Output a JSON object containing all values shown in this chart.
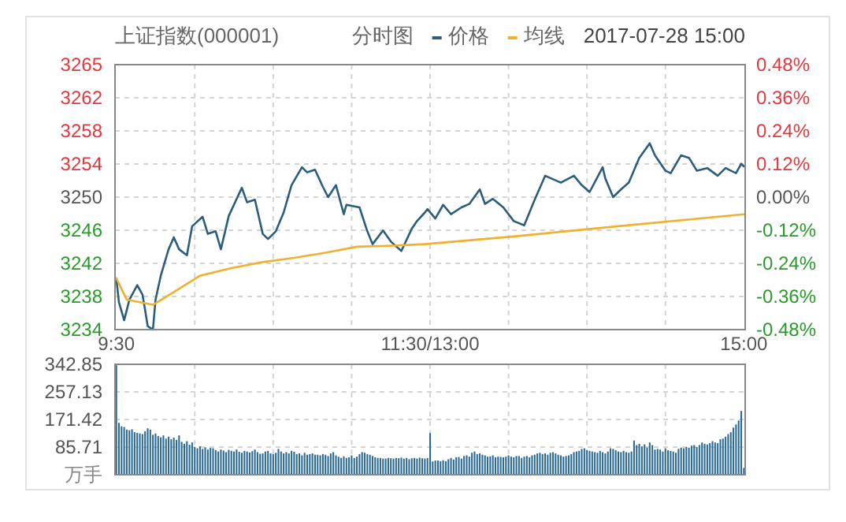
{
  "chart_data": [
    {
      "type": "line",
      "title": "上证指数(000001)",
      "subtitle": "分时图",
      "annotations": [
        "2017-07-28 15:00"
      ],
      "legend": "top right",
      "grid": true,
      "marker": "none",
      "line_style": "solid",
      "categories": [
        "9:30",
        null,
        null,
        null,
        null,
        null,
        null,
        null,
        null,
        null,
        null,
        null,
        null,
        null,
        null,
        null,
        null,
        null,
        null,
        null,
        null,
        null,
        null,
        null,
        null,
        null,
        null,
        null,
        null,
        null,
        null,
        null,
        null,
        null,
        null,
        null,
        null,
        null,
        null,
        null,
        null,
        null,
        null,
        null,
        null,
        null,
        null,
        null,
        null,
        null,
        null,
        null,
        null,
        null,
        null,
        null,
        null,
        null,
        null,
        null,
        null,
        null,
        null,
        null,
        null,
        null,
        null,
        null,
        null,
        null,
        null,
        null,
        null,
        null,
        null,
        null,
        null,
        null,
        null,
        null,
        null,
        null,
        null,
        null,
        null,
        null,
        null,
        null,
        null,
        null,
        null,
        null,
        null,
        null,
        null,
        null,
        null,
        null,
        null,
        null,
        null,
        null,
        null,
        null,
        null,
        null,
        null,
        null,
        null,
        null,
        null,
        null,
        null,
        null,
        null,
        null,
        null,
        null,
        null,
        null,
        "11:30/13:00",
        null,
        null,
        null,
        null,
        null,
        null,
        null,
        null,
        null,
        null,
        null,
        null,
        null,
        null,
        null,
        null,
        null,
        null,
        null,
        null,
        null,
        null,
        null,
        null,
        null,
        null,
        null,
        null,
        null,
        null,
        null,
        null,
        null,
        null,
        null,
        null,
        null,
        null,
        null,
        null,
        null,
        null,
        null,
        null,
        null,
        null,
        null,
        null,
        null,
        null,
        null,
        null,
        null,
        null,
        null,
        null,
        null,
        null,
        null,
        null,
        null,
        null,
        null,
        null,
        null,
        null,
        null,
        null,
        null,
        null,
        null,
        null,
        null,
        null,
        null,
        null,
        null,
        null,
        null,
        null,
        null,
        null,
        null,
        null,
        null,
        null,
        null,
        null,
        null,
        null,
        null,
        null,
        null,
        null,
        null,
        null,
        null,
        null,
        null,
        null,
        null,
        null,
        null,
        null,
        null,
        null,
        null,
        null,
        null,
        null,
        null,
        null,
        null,
        null,
        null,
        null,
        null,
        null,
        null,
        "15:00"
      ],
      "ylim": [
        3234.5,
        3265.5
      ],
      "yticks": [
        {
          "value": 3234.5,
          "label": "3234"
        },
        {
          "value": 3238.375,
          "label": "3238"
        },
        {
          "value": 3242.25,
          "label": "3242"
        },
        {
          "value": 3246.125,
          "label": "3246"
        },
        {
          "value": 3250,
          "label": "3250"
        },
        {
          "value": 3253.875,
          "label": "3254"
        },
        {
          "value": 3257.75,
          "label": "3258"
        },
        {
          "value": 3261.625,
          "label": "3262"
        },
        {
          "value": 3265.5,
          "label": "3265"
        }
      ],
      "y2lim": [
        -0.48,
        0.48
      ],
      "y2ticks": [
        {
          "value": -0.48,
          "label": "-0.48%"
        },
        {
          "value": -0.36,
          "label": "-0.36%"
        },
        {
          "value": -0.24,
          "label": "-0.24%"
        },
        {
          "value": -0.12,
          "label": "-0.12%"
        },
        {
          "value": 0,
          "label": "0.00%"
        },
        {
          "value": 0.12,
          "label": "0.12%"
        },
        {
          "value": 0.24,
          "label": "0.24%"
        },
        {
          "value": 0.36,
          "label": "0.36%"
        },
        {
          "value": 0.48,
          "label": "0.48%"
        }
      ],
      "series": [
        {
          "name": "价格",
          "color": "#2b5d7c",
          "values": [
            3240.5,
            3237.7,
            null,
            3235.6,
            null,
            3238.0,
            null,
            null,
            3239.7,
            null,
            3238.6,
            3236.8,
            3234.9,
            null,
            3234.5,
            3238.0,
            null,
            3240.8,
            null,
            null,
            3243.9,
            null,
            3245.3,
            null,
            3243.9,
            null,
            null,
            3243.2,
            null,
            3246.6,
            null,
            null,
            null,
            3247.7,
            null,
            3245.7,
            null,
            null,
            3246.0,
            null,
            3243.9,
            null,
            null,
            3247.8,
            null,
            null,
            null,
            null,
            3251.1,
            null,
            3249.4,
            null,
            null,
            3249.7,
            null,
            null,
            3245.7,
            null,
            3245.1,
            null,
            null,
            3246.0,
            null,
            null,
            3248.2,
            null,
            null,
            3251.4,
            null,
            null,
            null,
            3253.5,
            null,
            3252.9,
            null,
            null,
            3253.2,
            null,
            null,
            3251.2,
            null,
            3250.0,
            null,
            null,
            3251.4,
            null,
            null,
            3248.0,
            3249.1,
            null,
            null,
            null,
            null,
            3248.8,
            null,
            null,
            3246.0,
            null,
            3244.5,
            null,
            null,
            null,
            3246.1,
            null,
            null,
            3244.8,
            null,
            null,
            null,
            3243.7,
            null,
            null,
            null,
            3246.3,
            null,
            3247.2,
            null,
            null,
            3248.2,
            3248.6,
            null,
            null,
            3247.5,
            null,
            null,
            3249.1,
            null,
            null,
            3248.0,
            null,
            null,
            null,
            3248.8,
            null,
            null,
            3249.2,
            null,
            null,
            null,
            3250.9,
            null,
            3249.2,
            null,
            null,
            3249.8,
            null,
            null,
            null,
            3248.8,
            null,
            null,
            null,
            3247.2,
            null,
            null,
            null,
            3246.7,
            null,
            null,
            null,
            3249.7,
            null,
            null,
            null,
            3252.5,
            null,
            null,
            null,
            null,
            null,
            3251.7,
            null,
            null,
            null,
            null,
            3252.5,
            null,
            null,
            3251.4,
            null,
            null,
            3250.6,
            null,
            null,
            null,
            null,
            3253.5,
            3252.2,
            null,
            null,
            3250.0,
            null,
            null,
            3250.9,
            null,
            null,
            3251.7,
            null,
            null,
            null,
            3254.6,
            null,
            null,
            null,
            3256.3,
            null,
            3254.9,
            null,
            null,
            null,
            3253.1,
            null,
            3252.8,
            null,
            null,
            null,
            3254.9,
            null,
            null,
            3254.6,
            null,
            null,
            3253.1,
            null,
            null,
            null,
            3253.4,
            null,
            null,
            null,
            3252.5,
            null,
            null,
            3253.4,
            null,
            null,
            null,
            3252.8,
            null,
            3253.9,
            3253.6
          ]
        },
        {
          "name": "均线",
          "color": "#f0b030",
          "values": [
            3240.5,
            null,
            null,
            null,
            3238.0,
            null,
            null,
            null,
            null,
            null,
            null,
            null,
            null,
            null,
            3237.4,
            null,
            null,
            null,
            null,
            null,
            null,
            null,
            3238.9,
            null,
            null,
            null,
            null,
            null,
            null,
            null,
            null,
            null,
            3240.8,
            null,
            null,
            null,
            null,
            null,
            null,
            null,
            null,
            null,
            null,
            null,
            3241.7,
            null,
            null,
            null,
            null,
            null,
            null,
            null,
            null,
            null,
            null,
            null,
            3242.4,
            null,
            null,
            null,
            null,
            null,
            null,
            null,
            null,
            null,
            null,
            null,
            3242.9,
            null,
            null,
            null,
            null,
            null,
            null,
            null,
            null,
            null,
            null,
            null,
            3243.5,
            null,
            null,
            null,
            null,
            null,
            null,
            null,
            null,
            null,
            null,
            null,
            3244.2,
            null,
            null,
            null,
            null,
            null,
            null,
            null,
            null,
            null,
            null,
            null,
            3244.3,
            null,
            null,
            null,
            null,
            null,
            null,
            null,
            null,
            null,
            null,
            null,
            null,
            null,
            3244.5,
            null,
            null,
            null,
            null,
            null,
            null,
            null,
            null,
            null,
            null,
            null,
            null,
            null,
            null,
            null,
            null,
            null,
            null,
            null,
            null,
            null,
            null,
            null,
            null,
            null,
            null,
            null,
            null,
            null,
            null,
            null,
            null,
            null,
            3245.4,
            null,
            null,
            null,
            null,
            null,
            null,
            null,
            null,
            null,
            null,
            null,
            null,
            null,
            null,
            null,
            null,
            null,
            null,
            null,
            null,
            null,
            null,
            null,
            null,
            null,
            null,
            null,
            null,
            null,
            null,
            null,
            null,
            null,
            null,
            null,
            null,
            null,
            null,
            null,
            3246.6,
            null,
            null,
            null,
            null,
            null,
            null,
            null,
            null,
            null,
            null,
            null,
            null,
            null,
            null,
            null,
            null,
            null,
            null,
            null,
            null,
            null,
            null,
            null,
            null,
            null,
            null,
            null,
            null,
            null,
            null,
            null,
            null,
            null,
            null,
            null,
            null,
            null,
            null,
            null,
            null,
            null,
            null,
            null,
            null,
            null,
            null,
            null,
            3248.0
          ]
        }
      ]
    },
    {
      "type": "bar",
      "ylabel": "万手",
      "grid": true,
      "tick_labels": "y",
      "color": "#2a6a96",
      "categories": [
        null,
        null,
        null,
        null,
        null,
        null,
        null,
        null,
        null,
        null,
        null,
        null,
        null,
        null,
        null,
        null,
        null,
        null,
        null,
        null,
        null,
        null,
        null,
        null,
        null,
        null,
        null,
        null,
        null,
        null,
        null,
        null,
        null,
        null,
        null,
        null,
        null,
        null,
        null,
        null,
        null,
        null,
        null,
        null,
        null,
        null,
        null,
        null,
        null,
        null,
        null,
        null,
        null,
        null,
        null,
        null,
        null,
        null,
        null,
        null,
        null,
        null,
        null,
        null,
        null,
        null,
        null,
        null,
        null,
        null,
        null,
        null,
        null,
        null,
        null,
        null,
        null,
        null,
        null,
        null,
        null,
        null,
        null,
        null,
        null,
        null,
        null,
        null,
        null,
        null,
        null,
        null,
        null,
        null,
        null,
        null,
        null,
        null,
        null,
        null,
        null,
        null,
        null,
        null,
        null,
        null,
        null,
        null,
        null,
        null,
        null,
        null,
        null,
        null,
        null,
        null,
        null,
        null,
        null,
        null,
        null,
        null,
        null,
        null,
        null,
        null,
        null,
        null,
        null,
        null,
        null,
        null,
        null,
        null,
        null,
        null,
        null,
        null,
        null,
        null,
        null,
        null,
        null,
        null,
        null,
        null,
        null,
        null,
        null,
        null,
        null,
        null,
        null,
        null,
        null,
        null,
        null,
        null,
        null,
        null,
        null,
        null,
        null,
        null,
        null,
        null,
        null,
        null,
        null,
        null,
        null,
        null,
        null,
        null,
        null,
        null,
        null,
        null,
        null,
        null,
        null,
        null,
        null,
        null,
        null,
        null,
        null,
        null,
        null,
        null,
        null,
        null,
        null,
        null,
        null,
        null,
        null,
        null,
        null,
        null,
        null,
        null,
        null,
        null,
        null,
        null,
        null,
        null,
        null,
        null,
        null,
        null,
        null,
        null,
        null,
        null,
        null,
        null,
        null,
        null,
        null,
        null,
        null,
        null,
        null,
        null,
        null,
        null,
        null,
        null,
        null,
        null,
        null,
        null,
        null,
        null,
        null,
        null,
        null,
        null,
        null
      ],
      "ylim": [
        0,
        342.85
      ],
      "yticks": [
        85.71,
        171.42,
        257.13,
        342.85
      ],
      "values": [
        340,
        161,
        150,
        148,
        140,
        138,
        141,
        132,
        130,
        128,
        126,
        135,
        144,
        140,
        124,
        128,
        120,
        116,
        122,
        112,
        118,
        110,
        115,
        108,
        122,
        102,
        96,
        104,
        93,
        100,
        86,
        82,
        88,
        80,
        85,
        78,
        83,
        82,
        76,
        72,
        78,
        75,
        70,
        77,
        74,
        72,
        78,
        71,
        68,
        74,
        72,
        69,
        73,
        78,
        70,
        65,
        66,
        72,
        74,
        66,
        64,
        68,
        80,
        72,
        66,
        70,
        66,
        74,
        71,
        64,
        66,
        60,
        68,
        62,
        64,
        66,
        62,
        62,
        60,
        64,
        62,
        58,
        66,
        70,
        60,
        56,
        52,
        57,
        52,
        54,
        60,
        52,
        56,
        64,
        70,
        68,
        64,
        62,
        58,
        54,
        52,
        52,
        50,
        50,
        52,
        51,
        50,
        52,
        51,
        53,
        50,
        52,
        48,
        51,
        52,
        50,
        53,
        51,
        50,
        52,
        129,
        41,
        44,
        44,
        42,
        45,
        42,
        48,
        52,
        47,
        54,
        55,
        50,
        58,
        60,
        56,
        68,
        72,
        64,
        66,
        62,
        60,
        56,
        57,
        60,
        54,
        56,
        55,
        54,
        56,
        60,
        56,
        54,
        58,
        58,
        52,
        56,
        58,
        54,
        60,
        62,
        66,
        68,
        64,
        66,
        62,
        68,
        70,
        66,
        62,
        60,
        56,
        58,
        60,
        64,
        70,
        72,
        74,
        80,
        82,
        76,
        74,
        72,
        70,
        68,
        74,
        70,
        66,
        72,
        82,
        80,
        76,
        72,
        70,
        74,
        70,
        68,
        72,
        106,
        92,
        96,
        88,
        94,
        84,
        100,
        92,
        78,
        80,
        78,
        72,
        82,
        76,
        74,
        72,
        68,
        80,
        84,
        82,
        86,
        84,
        90,
        92,
        86,
        92,
        100,
        96,
        94,
        98,
        104,
        100,
        98,
        110,
        112,
        118,
        126,
        132,
        146,
        156,
        168,
        198,
        21
      ]
    }
  ]
}
